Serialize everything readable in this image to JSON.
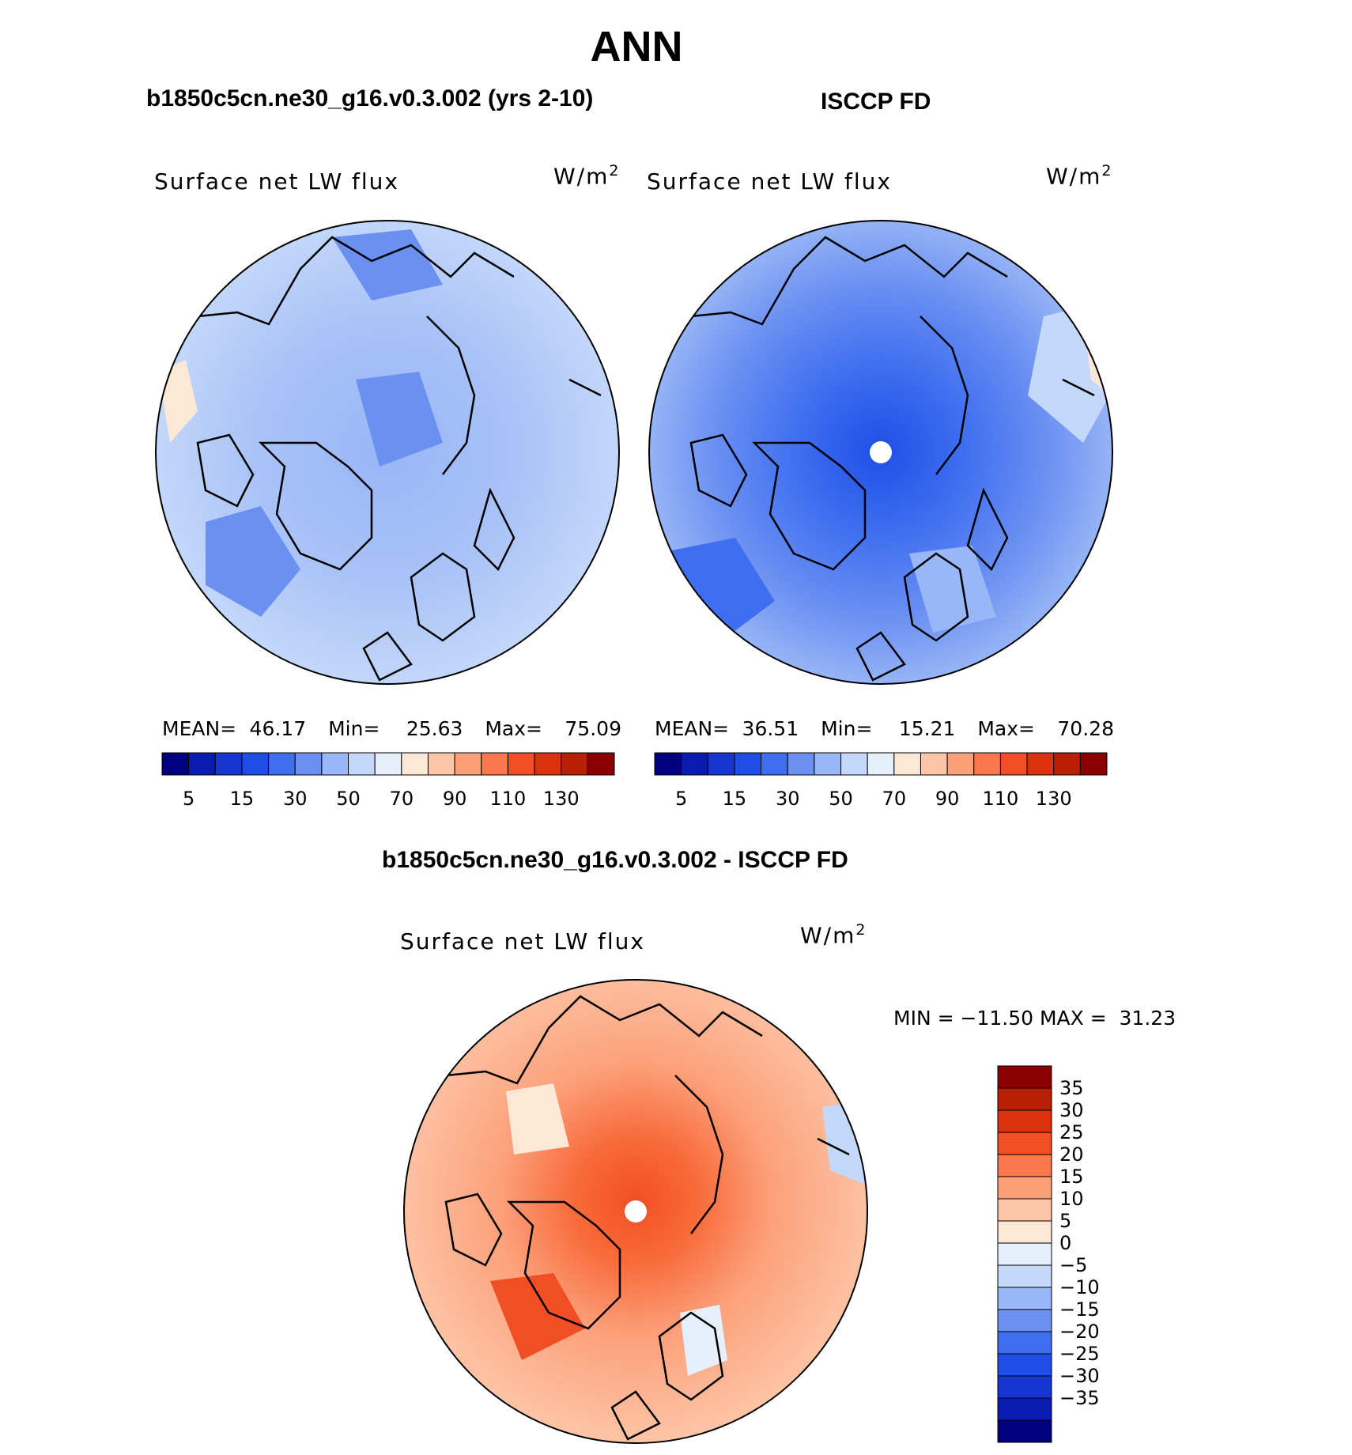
{
  "page_title": "ANN",
  "panels": [
    {
      "case_title": "b1850c5cn.ne30_g16.v0.3.002 (yrs 2-10)",
      "variable": "Surface net LW flux",
      "units_base": "W/m",
      "units_exp": "2",
      "stats": {
        "mean_label": "MEAN=",
        "mean": "46.17",
        "min_label": "Min=",
        "min": "25.63",
        "max_label": "Max=",
        "max": "75.09"
      }
    },
    {
      "case_title": "ISCCP FD",
      "variable": "Surface net LW flux",
      "units_base": "W/m",
      "units_exp": "2",
      "stats": {
        "mean_label": "MEAN=",
        "mean": "36.51",
        "min_label": "Min=",
        "min": "15.21",
        "max_label": "Max=",
        "max": "70.28"
      }
    }
  ],
  "diff": {
    "title": "b1850c5cn.ne30_g16.v0.3.002 - ISCCP FD",
    "variable": "Surface net LW flux",
    "units_base": "W/m",
    "units_exp": "2",
    "minmax_text": "MIN = −11.50 MAX =  31.23"
  },
  "field_colorbar": {
    "colors": [
      "#00007f",
      "#0a1cb0",
      "#1636d2",
      "#1f4ee6",
      "#3f6ef0",
      "#6a90f2",
      "#99b6f6",
      "#c4d8fa",
      "#e6f0fc",
      "#fde8d6",
      "#fdc6a8",
      "#fca07a",
      "#fa784c",
      "#f24e26",
      "#dc300e",
      "#b82004",
      "#8b0000"
    ],
    "tick_labels": [
      "5",
      "15",
      "30",
      "50",
      "70",
      "90",
      "110",
      "130"
    ]
  },
  "diff_colorbar": {
    "colors_top_to_bottom": [
      "#8b0000",
      "#b82004",
      "#dc300e",
      "#f24e26",
      "#fa784c",
      "#fca07a",
      "#fdc6a8",
      "#fde8d6",
      "#e6f0fc",
      "#c4d8fa",
      "#99b6f6",
      "#6a90f2",
      "#3f6ef0",
      "#1f4ee6",
      "#1636d2",
      "#0a1cb0",
      "#00007f"
    ],
    "tick_labels": [
      "35",
      "30",
      "25",
      "20",
      "15",
      "10",
      "5",
      "0",
      "−5",
      "−10",
      "−15",
      "−20",
      "−25",
      "−30",
      "−35"
    ]
  },
  "chart_data": [
    {
      "type": "heatmap",
      "projection": "north polar stereographic",
      "title": "b1850c5cn.ne30_g16.v0.3.002 (yrs 2-10)",
      "variable": "Surface net LW flux",
      "units": "W/m2",
      "mean": 46.17,
      "min": 25.63,
      "max": 75.09,
      "contour_levels": [
        5,
        10,
        15,
        20,
        30,
        40,
        50,
        60,
        70,
        80,
        90,
        100,
        110,
        120,
        130
      ]
    },
    {
      "type": "heatmap",
      "projection": "north polar stereographic",
      "title": "ISCCP FD",
      "variable": "Surface net LW flux",
      "units": "W/m2",
      "mean": 36.51,
      "min": 15.21,
      "max": 70.28,
      "contour_levels": [
        5,
        10,
        15,
        20,
        30,
        40,
        50,
        60,
        70,
        80,
        90,
        100,
        110,
        120,
        130
      ]
    },
    {
      "type": "heatmap",
      "projection": "north polar stereographic",
      "title": "b1850c5cn.ne30_g16.v0.3.002 - ISCCP FD",
      "variable": "Surface net LW flux",
      "units": "W/m2",
      "min": -11.5,
      "max": 31.23,
      "contour_levels": [
        -35,
        -30,
        -25,
        -20,
        -15,
        -10,
        -5,
        0,
        5,
        10,
        15,
        20,
        25,
        30,
        35
      ]
    }
  ]
}
